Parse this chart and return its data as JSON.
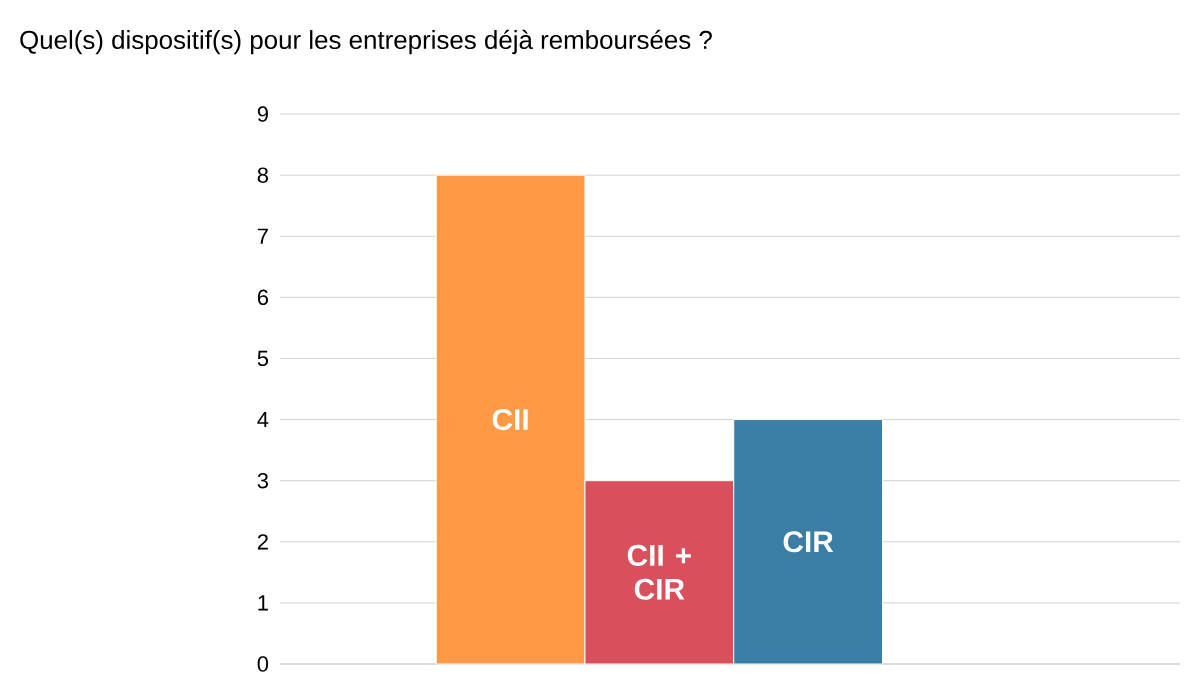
{
  "chart_data": {
    "type": "bar",
    "title": "Quel(s) dispositif(s) pour les entreprises déjà remboursées ?",
    "categories": [
      "CII",
      "CII + CIR",
      "CIR"
    ],
    "values": [
      8,
      3,
      4
    ],
    "colors": [
      "#fe9a45",
      "#d9505c",
      "#3a7ea6"
    ],
    "ylim": [
      0,
      9
    ],
    "yticks": [
      0,
      1,
      2,
      3,
      4,
      5,
      6,
      7,
      8,
      9
    ],
    "grid": "y"
  }
}
